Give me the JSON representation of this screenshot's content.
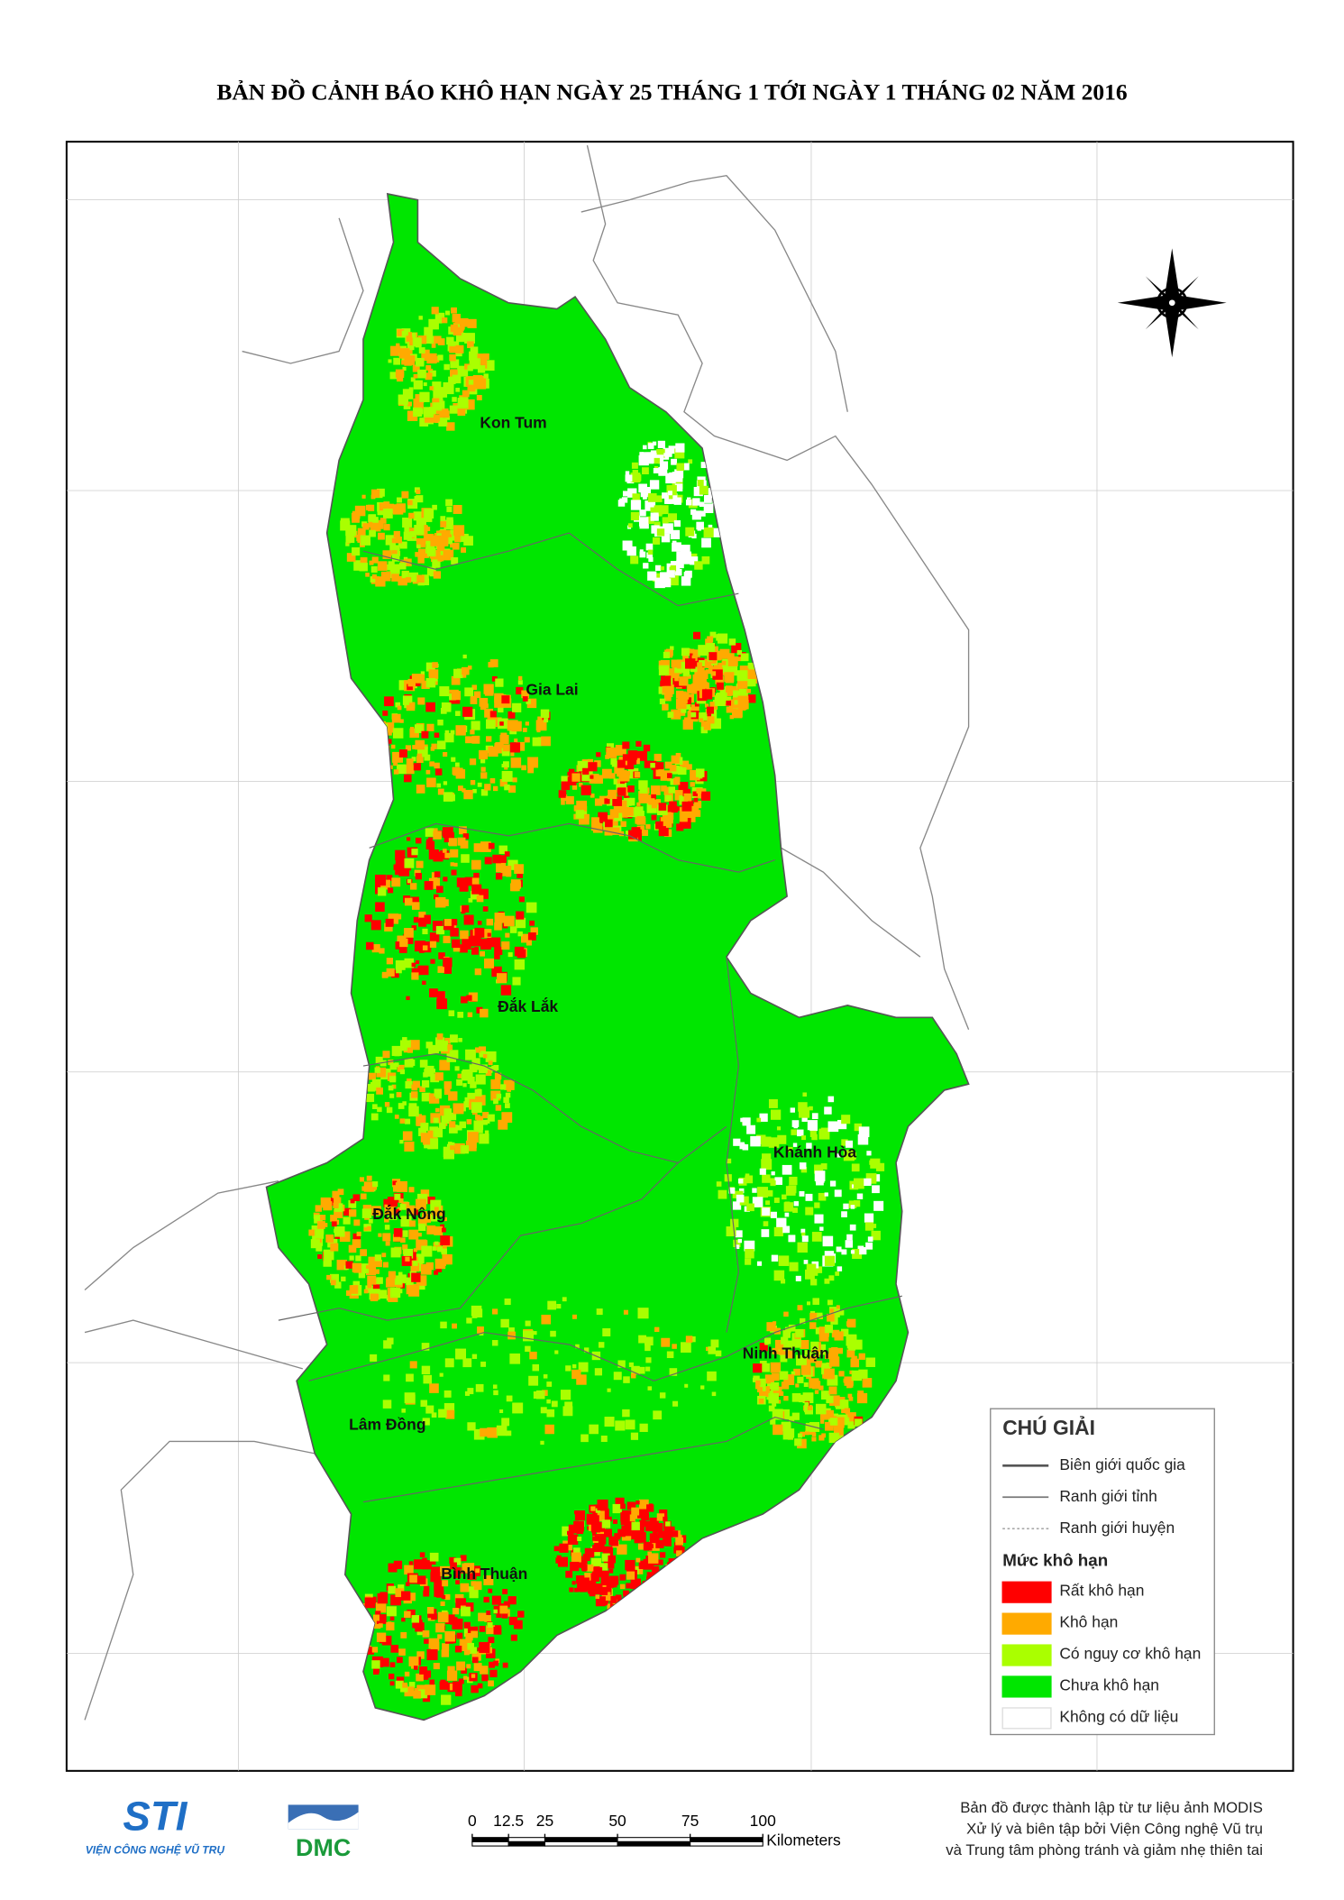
{
  "title": "BẢN ĐỒ CẢNH BÁO KHÔ HẠN NGÀY 25 THÁNG 1 TỚI NGÀY 1 THÁNG 02 NĂM 2016",
  "map": {
    "provinces": [
      "Kon Tum",
      "Gia Lai",
      "Đắk Lắk",
      "Khánh Hòa",
      "Đắk Nông",
      "Ninh Thuận",
      "Lâm Đồng",
      "Bình Thuận"
    ]
  },
  "legend": {
    "title": "CHÚ GIẢI",
    "boundaries": [
      "Biên giới quốc gia",
      "Ranh giới tỉnh",
      "Ranh giới huyện"
    ],
    "drought_title": "Mức khô hạn",
    "classes": [
      {
        "label": "Rất khô hạn",
        "color": "#ff0000"
      },
      {
        "label": "Khô hạn",
        "color": "#ffaa00"
      },
      {
        "label": "Có nguy cơ khô hạn",
        "color": "#aaff00"
      },
      {
        "label": "Chưa khô hạn",
        "color": "#00e600"
      },
      {
        "label": "Không có dữ liệu",
        "color": "#ffffff"
      }
    ]
  },
  "scale_bar": {
    "ticks": [
      0,
      12.5,
      25,
      50,
      75,
      100
    ],
    "unit": "Kilometers"
  },
  "logos": {
    "sti": "STI",
    "sti_caption": "VIỆN CÔNG NGHỆ VŨ TRỤ",
    "dmc": "DMC"
  },
  "credits": [
    "Bản đồ được thành lập từ tư liệu ảnh MODIS",
    "Xử lý và biên tập bởi Viện Công nghệ Vũ trụ",
    "và Trung tâm phòng tránh và giảm nhẹ thiên tai"
  ]
}
